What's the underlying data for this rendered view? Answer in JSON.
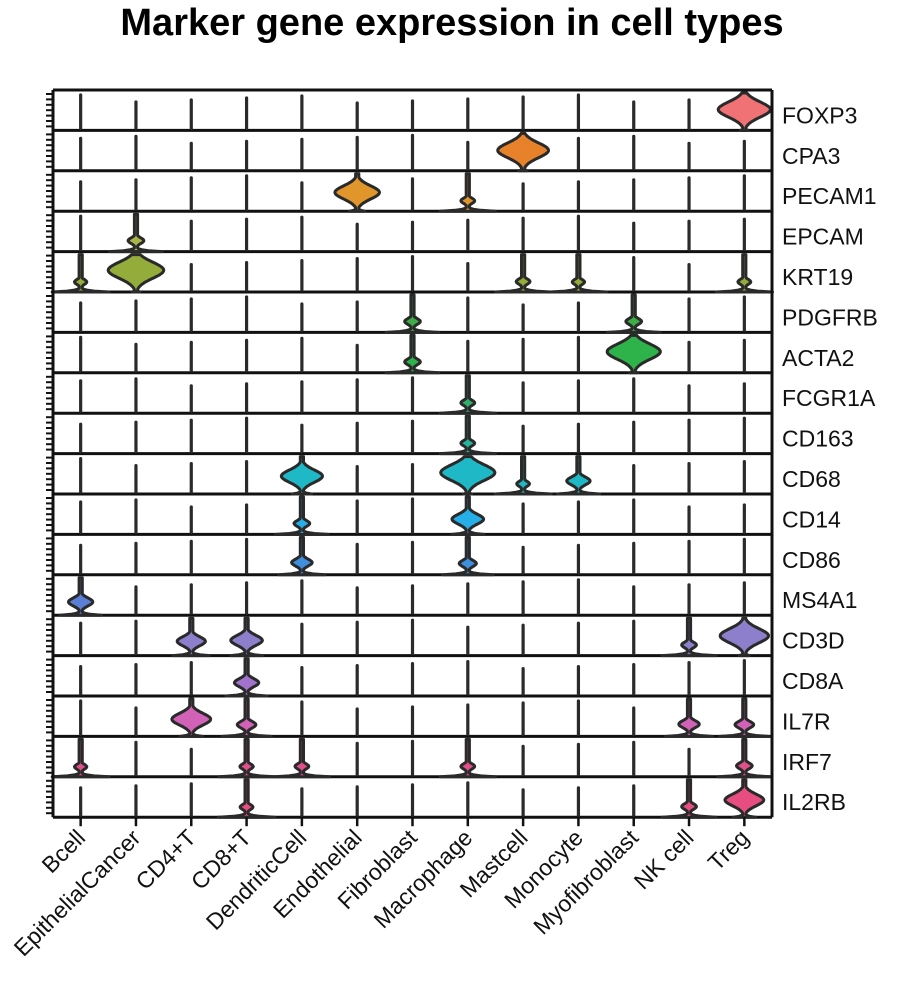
{
  "title": "Marker gene expression in cell types",
  "chart_data": {
    "type": "stacked-violin",
    "title": "Marker gene expression in cell types",
    "categories": [
      "Bcell",
      "EpithelialCancer",
      "CD4+T",
      "CD8+T",
      "DendriticCell",
      "Endothelial",
      "Fibroblast",
      "Macrophage",
      "Mastcell",
      "Monocyte",
      "Myofibroblast",
      "NK cell",
      "Treg"
    ],
    "genes": [
      "FOXP3",
      "CPA3",
      "PECAM1",
      "EPCAM",
      "KRT19",
      "PDGFRB",
      "ACTA2",
      "FCGR1A",
      "CD163",
      "CD68",
      "CD14",
      "CD86",
      "MS4A1",
      "CD3D",
      "CD8A",
      "IL7R",
      "IRF7",
      "IL2RB"
    ],
    "gene_colors": [
      "#f07274",
      "#e8822a",
      "#e0962a",
      "#a9b54a",
      "#93ac3a",
      "#3cae45",
      "#2db34a",
      "#2faf6a",
      "#26b59a",
      "#1fb8c6",
      "#25aee8",
      "#3f8fdd",
      "#5b7fd4",
      "#8d7fcc",
      "#a273cc",
      "#d162b8",
      "#e0508a",
      "#e84d82"
    ],
    "values": [
      [
        0,
        0,
        0,
        0,
        0,
        0,
        0,
        0,
        0,
        0,
        0,
        0,
        0.88
      ],
      [
        0,
        0,
        0,
        0,
        0,
        0,
        0,
        0,
        0.85,
        0,
        0,
        0,
        0
      ],
      [
        0,
        0,
        0,
        0,
        0,
        0.72,
        0,
        0.08,
        0,
        0,
        0,
        0,
        0
      ],
      [
        0,
        0.12,
        0,
        0,
        0,
        0,
        0,
        0,
        0,
        0,
        0,
        0,
        0
      ],
      [
        0.05,
        0.95,
        0,
        0,
        0,
        0,
        0,
        0,
        0.08,
        0.05,
        0,
        0,
        0.06
      ],
      [
        0,
        0,
        0,
        0,
        0,
        0,
        0.12,
        0,
        0,
        0,
        0.12,
        0,
        0
      ],
      [
        0,
        0,
        0,
        0,
        0,
        0,
        0.12,
        0,
        0,
        0,
        0.9,
        0,
        0
      ],
      [
        0,
        0,
        0,
        0,
        0,
        0,
        0,
        0.08,
        0,
        0,
        0,
        0,
        0
      ],
      [
        0,
        0,
        0,
        0,
        0,
        0,
        0,
        0.08,
        0,
        0,
        0,
        0,
        0
      ],
      [
        0,
        0,
        0,
        0,
        0.65,
        0,
        0,
        0.92,
        0.06,
        0.28,
        0,
        0,
        0
      ],
      [
        0,
        0,
        0,
        0,
        0.12,
        0,
        0,
        0.45,
        0,
        0,
        0,
        0,
        0
      ],
      [
        0,
        0,
        0,
        0,
        0.22,
        0,
        0,
        0.15,
        0,
        0,
        0,
        0,
        0
      ],
      [
        0.3,
        0,
        0,
        0,
        0,
        0,
        0,
        0,
        0,
        0,
        0,
        0,
        0
      ],
      [
        0,
        0,
        0.38,
        0.45,
        0,
        0,
        0,
        0,
        0,
        0,
        0,
        0.1,
        0.8
      ],
      [
        0,
        0,
        0,
        0.3,
        0,
        0,
        0,
        0,
        0,
        0,
        0,
        0,
        0
      ],
      [
        0,
        0,
        0.6,
        0.18,
        0,
        0,
        0,
        0,
        0,
        0,
        0,
        0.22,
        0.18
      ],
      [
        0.05,
        0,
        0,
        0.07,
        0.08,
        0,
        0,
        0.08,
        0,
        0,
        0,
        0,
        0.12
      ],
      [
        0,
        0,
        0,
        0.06,
        0,
        0,
        0,
        0,
        0,
        0,
        0,
        0.1,
        0.6
      ]
    ]
  }
}
